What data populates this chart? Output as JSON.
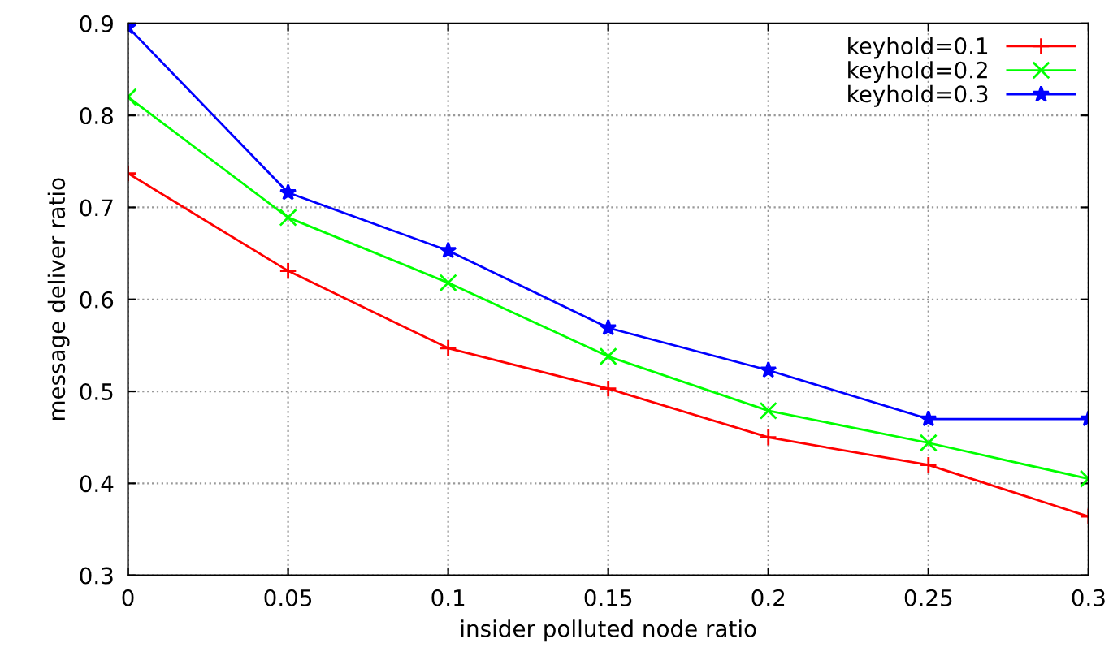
{
  "chart_data": {
    "type": "line",
    "xlabel": "insider polluted node ratio",
    "ylabel": "message deliver ratio",
    "x": [
      0,
      0.05,
      0.1,
      0.15,
      0.2,
      0.25,
      0.3
    ],
    "series": [
      {
        "name": "keyhold=0.1",
        "color": "#ff0000",
        "marker": "plus",
        "values": [
          0.737,
          0.631,
          0.547,
          0.503,
          0.45,
          0.42,
          0.364
        ]
      },
      {
        "name": "keyhold=0.2",
        "color": "#00ff00",
        "marker": "cross",
        "values": [
          0.82,
          0.689,
          0.618,
          0.538,
          0.479,
          0.444,
          0.405
        ]
      },
      {
        "name": "keyhold=0.3",
        "color": "#0000ff",
        "marker": "star",
        "values": [
          0.896,
          0.716,
          0.653,
          0.569,
          0.523,
          0.47,
          0.47
        ]
      }
    ],
    "xlim": [
      0,
      0.3
    ],
    "xticks": [
      0,
      0.05,
      0.1,
      0.15,
      0.2,
      0.25,
      0.3
    ],
    "ylim": [
      0.3,
      0.9
    ],
    "yticks": [
      0.3,
      0.4,
      0.5,
      0.6,
      0.7,
      0.8,
      0.9
    ],
    "grid": true,
    "legend": "top right",
    "line_style": "solid"
  }
}
